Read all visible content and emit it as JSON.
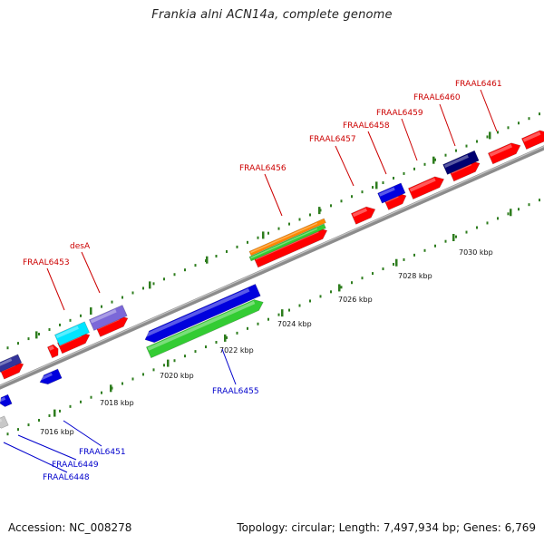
{
  "title": "Frankia alni ACN14a, complete genome",
  "footer": {
    "accession": "Accession: NC_008278",
    "summary": "Topology: circular; Length: 7,497,934 bp; Genes: 6,769"
  },
  "colors": {
    "forward_label": "#cc0000",
    "reverse_label": "#0000cc",
    "backbone": "#8c8c8c",
    "tick": "#2e7d1e"
  },
  "scale_labels": [
    "7016 kbp",
    "7018 kbp",
    "7020 kbp",
    "7022 kbp",
    "7024 kbp",
    "7026 kbp",
    "7028 kbp",
    "7030 kbp"
  ],
  "forward_gene_labels": [
    "FRAAL6453",
    "desA",
    "FRAAL6456",
    "FRAAL6457",
    "FRAAL6458",
    "FRAAL6459",
    "FRAAL6460",
    "FRAAL6461"
  ],
  "reverse_gene_labels": [
    "FRAAL6455",
    "FRAAL6451",
    "FRAAL6449",
    "FRAAL6448"
  ],
  "feature_colors": {
    "cds": "#ff0000",
    "gene_blue": "#0000dd",
    "gene_green": "#33cc33",
    "gene_orange": "#ff8800",
    "gene_cyan": "#00e5ff",
    "gene_purple": "#7b68d8",
    "gene_navy": "#000070",
    "gene_gray": "#c8c8c8"
  }
}
